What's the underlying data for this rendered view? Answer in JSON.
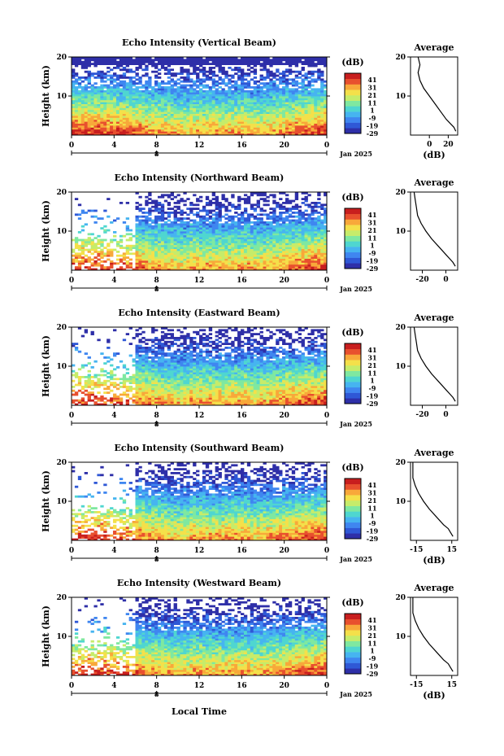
{
  "footer_xlabel": "Local Time",
  "panels": [
    {
      "title": "Echo Intensity (Vertical Beam)",
      "avg_xticks": [
        "0",
        "20"
      ],
      "avg_xlabel": "(dB)"
    },
    {
      "title": "Echo Intensity (Northward Beam)",
      "avg_xticks": [
        "-20",
        "0"
      ],
      "avg_xlabel": ""
    },
    {
      "title": "Echo Intensity (Eastward Beam)",
      "avg_xticks": [
        "-20",
        "0"
      ],
      "avg_xlabel": ""
    },
    {
      "title": "Echo Intensity (Southward Beam)",
      "avg_xticks": [
        "-15",
        "15"
      ],
      "avg_xlabel": "(dB)"
    },
    {
      "title": "Echo Intensity (Westward Beam)",
      "avg_xticks": [
        "-15",
        "15"
      ],
      "avg_xlabel": "(dB)"
    }
  ],
  "chart_data": {
    "type": "heatmap",
    "ylabel": "Height (km)",
    "yticks": [
      "20",
      "10"
    ],
    "ylim": [
      0,
      20
    ],
    "xlim": [
      0,
      24
    ],
    "xticks": [
      "0",
      "4",
      "8",
      "12",
      "16",
      "20",
      "0"
    ],
    "date_tick": "8",
    "date_label": "Jan 2025",
    "colorbar": {
      "label": "(dB)",
      "ticks": [
        "41",
        "31",
        "21",
        "11",
        "1",
        "-9",
        "-19",
        "-29"
      ],
      "range": [
        -29,
        41
      ],
      "colors": [
        "#2e2fa8",
        "#2f58d6",
        "#3f86f0",
        "#46b4f0",
        "#4fd6d0",
        "#7fe8a0",
        "#c6ec6a",
        "#f4e04a",
        "#f8a83a",
        "#e8502e",
        "#c81e1e"
      ]
    },
    "average_title": "Average",
    "average_ylim": [
      0,
      20
    ],
    "average_profiles": [
      {
        "name": "Vertical Beam",
        "xlim": [
          -20,
          30
        ],
        "height_km": [
          1,
          2,
          3,
          4,
          6,
          8,
          10,
          12,
          14,
          16,
          18,
          20
        ],
        "value_db": [
          28,
          26,
          22,
          18,
          12,
          6,
          0,
          -6,
          -10,
          -12,
          -10,
          -12
        ]
      },
      {
        "name": "Northward Beam",
        "xlim": [
          -30,
          10
        ],
        "height_km": [
          1,
          2,
          3,
          4,
          6,
          8,
          10,
          12,
          14,
          16,
          18,
          20
        ],
        "value_db": [
          8,
          6,
          3,
          0,
          -6,
          -12,
          -17,
          -21,
          -24,
          -25,
          -26,
          -27
        ]
      },
      {
        "name": "Eastward Beam",
        "xlim": [
          -30,
          10
        ],
        "height_km": [
          1,
          2,
          3,
          4,
          6,
          8,
          10,
          12,
          14,
          16,
          18,
          20
        ],
        "value_db": [
          8,
          6,
          3,
          0,
          -6,
          -12,
          -17,
          -21,
          -24,
          -25,
          -26,
          -27
        ]
      },
      {
        "name": "Southward Beam",
        "xlim": [
          -20,
          20
        ],
        "height_km": [
          1,
          2,
          3,
          4,
          6,
          8,
          10,
          12,
          14,
          16,
          18,
          20
        ],
        "value_db": [
          16,
          14,
          12,
          8,
          2,
          -4,
          -9,
          -13,
          -16,
          -18,
          -18,
          -18
        ]
      },
      {
        "name": "Westward Beam",
        "xlim": [
          -20,
          20
        ],
        "height_km": [
          1,
          2,
          3,
          4,
          6,
          8,
          10,
          12,
          14,
          16,
          18,
          20
        ],
        "value_db": [
          16,
          14,
          12,
          8,
          2,
          -4,
          -9,
          -13,
          -16,
          -18,
          -18,
          -18
        ]
      }
    ]
  }
}
